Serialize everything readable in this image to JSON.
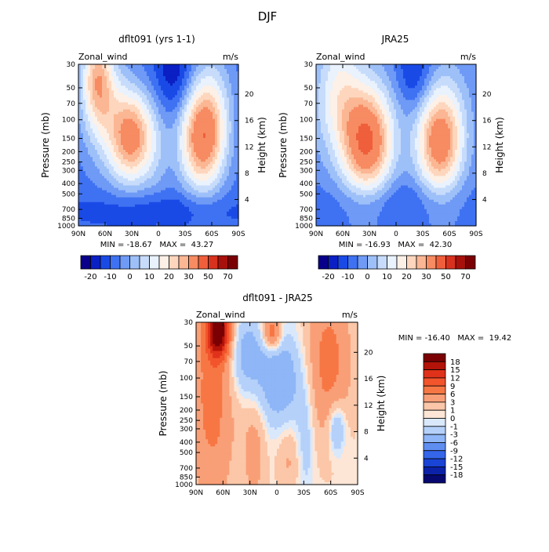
{
  "figure_title": "DJF",
  "chart_data": [
    {
      "type": "heatmap",
      "title": "dflt091 (yrs 1-1)",
      "left_label": "Zonal_wind",
      "units": "m/s",
      "ylabel": "Pressure (mb)",
      "y2label": "Height (km)",
      "x_tick_labels": [
        "90N",
        "60N",
        "30N",
        "0",
        "30S",
        "60S",
        "90S"
      ],
      "x_values": [
        90,
        60,
        30,
        0,
        -30,
        -60,
        -90
      ],
      "xlim": [
        90,
        -90
      ],
      "y_tick_labels": [
        "30",
        "50",
        "70",
        "100",
        "150",
        "200",
        "250",
        "300",
        "400",
        "500",
        "700",
        "850",
        "1000"
      ],
      "y_values": [
        30,
        50,
        70,
        100,
        150,
        200,
        250,
        300,
        400,
        500,
        700,
        850,
        1000
      ],
      "ylim": [
        1000,
        30
      ],
      "y2_tick_labels": [
        "20",
        "16",
        "12",
        "8",
        "4"
      ],
      "y2_values": [
        20,
        16,
        12,
        8,
        4
      ],
      "min_max_text": "MIN = -18.67   MAX =  43.27",
      "min": -18.67,
      "max": 43.27,
      "colorbar_labels": [
        "-20",
        "-10",
        "0",
        "10",
        "20",
        "30",
        "50",
        "70"
      ],
      "colorbar_levels": [
        -20,
        -15,
        -10,
        -5,
        0,
        5,
        10,
        15,
        20,
        25,
        30,
        40,
        50,
        60,
        70
      ],
      "colorbar_colors": [
        "#08008a",
        "#0a1fc4",
        "#1a4ae6",
        "#3f72f2",
        "#6f9af6",
        "#9ec0f9",
        "#c7dcfb",
        "#e9f2fd",
        "#fdf0e6",
        "#fdd6bd",
        "#fbb693",
        "#f78b62",
        "#ef5f3b",
        "#d8321e",
        "#a8110b",
        "#7a0004"
      ]
    },
    {
      "type": "heatmap",
      "title": "JRA25",
      "left_label": "Zonal_wind",
      "units": "m/s",
      "ylabel": "Pressure (mb)",
      "y2label": "Height (km)",
      "x_tick_labels": [
        "90N",
        "60N",
        "30N",
        "0",
        "30S",
        "60S",
        "90S"
      ],
      "x_values": [
        90,
        60,
        30,
        0,
        -30,
        -60,
        -90
      ],
      "xlim": [
        90,
        -90
      ],
      "y_tick_labels": [
        "30",
        "50",
        "70",
        "100",
        "150",
        "200",
        "250",
        "300",
        "400",
        "500",
        "700",
        "850",
        "1000"
      ],
      "y_values": [
        30,
        50,
        70,
        100,
        150,
        200,
        250,
        300,
        400,
        500,
        700,
        850,
        1000
      ],
      "ylim": [
        1000,
        30
      ],
      "y2_tick_labels": [
        "20",
        "16",
        "12",
        "8",
        "4"
      ],
      "y2_values": [
        20,
        16,
        12,
        8,
        4
      ],
      "min_max_text": "MIN = -16.93   MAX =  42.30",
      "min": -16.93,
      "max": 42.3,
      "colorbar_labels": [
        "-20",
        "-10",
        "0",
        "10",
        "20",
        "30",
        "50",
        "70"
      ],
      "colorbar_levels": [
        -20,
        -15,
        -10,
        -5,
        0,
        5,
        10,
        15,
        20,
        25,
        30,
        40,
        50,
        60,
        70
      ],
      "colorbar_colors": [
        "#08008a",
        "#0a1fc4",
        "#1a4ae6",
        "#3f72f2",
        "#6f9af6",
        "#9ec0f9",
        "#c7dcfb",
        "#e9f2fd",
        "#fdf0e6",
        "#fdd6bd",
        "#fbb693",
        "#f78b62",
        "#ef5f3b",
        "#d8321e",
        "#a8110b",
        "#7a0004"
      ]
    },
    {
      "type": "heatmap",
      "title": "dflt091 - JRA25",
      "left_label": "Zonal_wind",
      "units": "m/s",
      "ylabel": "Pressure (mb)",
      "y2label": "Height (km)",
      "x_tick_labels": [
        "90N",
        "60N",
        "30N",
        "0",
        "30S",
        "60S",
        "90S"
      ],
      "x_values": [
        90,
        60,
        30,
        0,
        -30,
        -60,
        -90
      ],
      "xlim": [
        90,
        -90
      ],
      "y_tick_labels": [
        "30",
        "50",
        "70",
        "100",
        "150",
        "200",
        "250",
        "300",
        "400",
        "500",
        "700",
        "850",
        "1000"
      ],
      "y_values": [
        30,
        50,
        70,
        100,
        150,
        200,
        250,
        300,
        400,
        500,
        700,
        850,
        1000
      ],
      "ylim": [
        1000,
        30
      ],
      "y2_tick_labels": [
        "20",
        "16",
        "12",
        "8",
        "4"
      ],
      "y2_values": [
        20,
        16,
        12,
        8,
        4
      ],
      "min_max_text": "MIN = -16.40   MAX =  19.42",
      "min": -16.4,
      "max": 19.42,
      "colorbar_labels": [
        "18",
        "15",
        "12",
        "9",
        "6",
        "3",
        "1",
        "0",
        "-1",
        "-3",
        "-6",
        "-9",
        "-12",
        "-15",
        "-18"
      ],
      "colorbar_levels": [
        18,
        15,
        12,
        9,
        6,
        3,
        1,
        0,
        -1,
        -3,
        -6,
        -9,
        -12,
        -15,
        -18
      ],
      "colorbar_colors": [
        "#7a0004",
        "#b31309",
        "#e0321a",
        "#f2542c",
        "#f77744",
        "#f99f77",
        "#fbc7a8",
        "#fde6d6",
        "#d9e8fb",
        "#b5d1fa",
        "#8fb6f6",
        "#5f8ef1",
        "#3566ea",
        "#1a44d6",
        "#0b22a8",
        "#060870"
      ]
    }
  ]
}
